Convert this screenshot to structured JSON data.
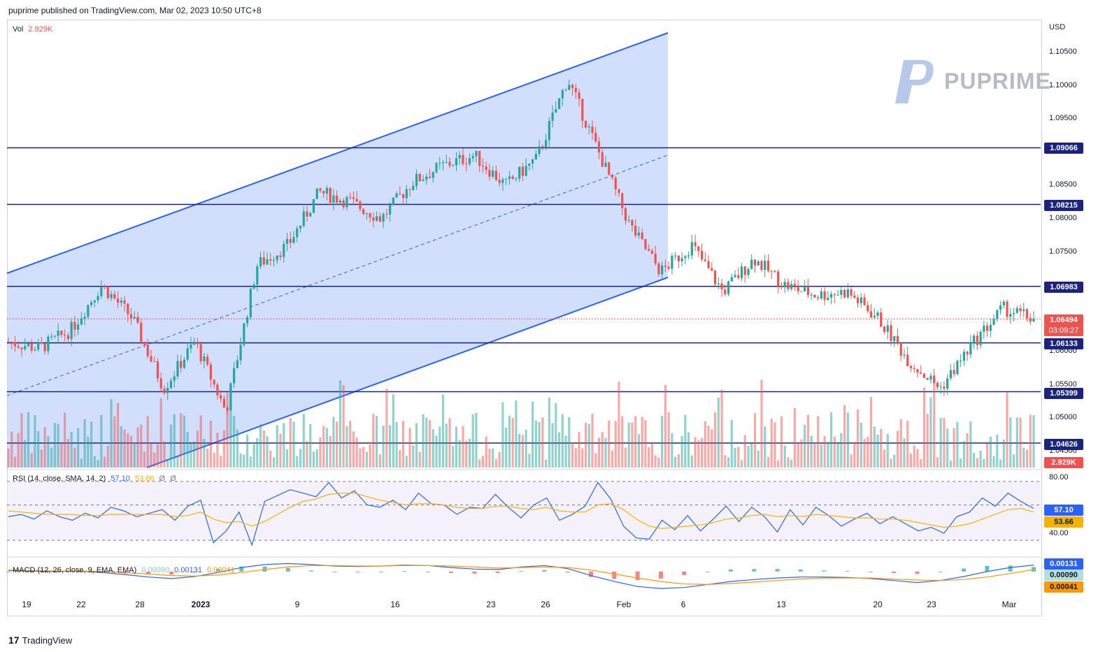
{
  "header": {
    "publisher": "puprime published on TradingView.com, Mar 02, 2023 10:50 UTC+8"
  },
  "footer": {
    "brand": "TradingView",
    "logo_glyph": "17"
  },
  "watermark": {
    "text": "PUPRIME"
  },
  "colors": {
    "up": "#26a69a",
    "down": "#ef5350",
    "channel_fill": "#c9d8fb",
    "channel_line": "#2962ff",
    "level_line": "#1a237e",
    "rsi_line": "#2962ff",
    "rsi_ma": "#f5b301",
    "macd_line": "#2962ff",
    "signal_line": "#ff9800"
  },
  "volume": {
    "label": "Vol",
    "value": "2.929K"
  },
  "axis": {
    "currency": "USD",
    "price_ticks": [
      "1.10500",
      "1.10000",
      "1.09500",
      "1.08500",
      "1.08000",
      "1.07500",
      "1.06000",
      "1.05500",
      "1.05000",
      "1.04500"
    ],
    "x_labels": [
      "19",
      "22",
      "28",
      "2023",
      "9",
      "16",
      "23",
      "26",
      "Feb",
      "6",
      "13",
      "20",
      "23",
      "Mar"
    ]
  },
  "price_labels": {
    "l1": "1.09066",
    "l2": "1.08215",
    "l3": "1.06983",
    "last": "1.06494",
    "countdown": "03:09:27",
    "l4": "1.06133",
    "l5": "1.05399",
    "l6": "1.04626",
    "vol": "2.929K"
  },
  "rsi": {
    "label": "RSI (14, close, SMA, 14, 2)",
    "value": "57.10",
    "ma": "53.66",
    "extra1": "Ø",
    "extra2": "Ø",
    "ticks": [
      "80.00",
      "40.00"
    ],
    "label_value": "57.10",
    "label_ma": "53.66"
  },
  "macd": {
    "label": "MACD (12, 26, close, 9, EMA, EMA)",
    "hist": "0.00090",
    "macd": "0.00131",
    "signal": "0.00041",
    "label_macd": "0.00131",
    "label_hist": "0.00090",
    "label_signal": "0.00041"
  },
  "chart_data": {
    "type": "candlestick",
    "symbol_currency": "USD",
    "horizontal_levels": [
      1.09066,
      1.08215,
      1.06983,
      1.06133,
      1.05399,
      1.04626
    ],
    "last_price": 1.06494,
    "ylim": [
      1.044,
      1.107
    ],
    "price_points": [
      {
        "x": "Dec 19",
        "y": 1.0615
      },
      {
        "x": "Dec 22",
        "y": 1.0605
      },
      {
        "x": "Dec 28",
        "y": 1.0632
      },
      {
        "x": "Dec 30",
        "y": 1.07
      },
      {
        "x": "Jan 2",
        "y": 1.065
      },
      {
        "x": "Jan 3",
        "y": 1.0545
      },
      {
        "x": "Jan 5",
        "y": 1.0615
      },
      {
        "x": "Jan 6",
        "y": 1.051
      },
      {
        "x": "Jan 9",
        "y": 1.073
      },
      {
        "x": "Jan 12",
        "y": 1.076
      },
      {
        "x": "Jan 13",
        "y": 1.084
      },
      {
        "x": "Jan 16",
        "y": 1.0825
      },
      {
        "x": "Jan 19",
        "y": 1.08
      },
      {
        "x": "Jan 20",
        "y": 1.0855
      },
      {
        "x": "Jan 23",
        "y": 1.088
      },
      {
        "x": "Jan 26",
        "y": 1.0895
      },
      {
        "x": "Jan 30",
        "y": 1.085
      },
      {
        "x": "Feb 1",
        "y": 1.089
      },
      {
        "x": "Feb 2",
        "y": 1.101
      },
      {
        "x": "Feb 3",
        "y": 1.09
      },
      {
        "x": "Feb 6",
        "y": 1.079
      },
      {
        "x": "Feb 8",
        "y": 1.072
      },
      {
        "x": "Feb 10",
        "y": 1.076
      },
      {
        "x": "Feb 13",
        "y": 1.069
      },
      {
        "x": "Feb 14",
        "y": 1.074
      },
      {
        "x": "Feb 15",
        "y": 1.07
      },
      {
        "x": "Feb 17",
        "y": 1.0685
      },
      {
        "x": "Feb 20",
        "y": 1.069
      },
      {
        "x": "Feb 22",
        "y": 1.065
      },
      {
        "x": "Feb 24",
        "y": 1.0585
      },
      {
        "x": "Feb 27",
        "y": 1.0545
      },
      {
        "x": "Feb 28",
        "y": 1.061
      },
      {
        "x": "Mar 1",
        "y": 1.0665
      },
      {
        "x": "Mar 2",
        "y": 1.0649
      }
    ],
    "rsi_ylim": [
      20,
      90
    ],
    "rsi_points": [
      50,
      52,
      48,
      55,
      50,
      47,
      53,
      49,
      58,
      55,
      50,
      53,
      56,
      47,
      59,
      64,
      28,
      38,
      54,
      26,
      63,
      68,
      73,
      70,
      67,
      79,
      66,
      72,
      60,
      58,
      64,
      56,
      70,
      61,
      60,
      52,
      58,
      57,
      69,
      58,
      49,
      60,
      66,
      47,
      52,
      59,
      79,
      65,
      42,
      32,
      31,
      47,
      39,
      51,
      38,
      48,
      59,
      46,
      58,
      50,
      37,
      56,
      43,
      58,
      51,
      42,
      48,
      53,
      44,
      50,
      44,
      38,
      41,
      36,
      50,
      54,
      66,
      59,
      70,
      63,
      57
    ],
    "rsi_ma_points": [
      55,
      54,
      53,
      52,
      52,
      52,
      51,
      51,
      52,
      52,
      52,
      52,
      52,
      50,
      51,
      54,
      48,
      45,
      46,
      42,
      46,
      52,
      58,
      63,
      65,
      69,
      70,
      70,
      67,
      64,
      62,
      60,
      61,
      61,
      60,
      58,
      57,
      57,
      59,
      59,
      57,
      56,
      58,
      55,
      54,
      54,
      60,
      61,
      56,
      48,
      42,
      40,
      41,
      42,
      43,
      45,
      48,
      49,
      51,
      52,
      50,
      51,
      50,
      52,
      51,
      50,
      49,
      49,
      48,
      48,
      47,
      45,
      43,
      41,
      42,
      44,
      48,
      52,
      56,
      57,
      54
    ],
    "macd_points": [
      0.0002,
      0.0001,
      0.0,
      0.0001,
      -0.0002,
      -0.0006,
      -0.0011,
      -0.0014,
      -0.001,
      -0.0002,
      0.0008,
      0.0014,
      0.0016,
      0.0014,
      0.0011,
      0.001,
      0.0011,
      0.0013,
      0.0012,
      0.0008,
      0.0005,
      0.0004,
      0.0009,
      0.0012,
      0.0006,
      -0.0008,
      -0.002,
      -0.003,
      -0.0034,
      -0.0032,
      -0.0026,
      -0.002,
      -0.0016,
      -0.0013,
      -0.0011,
      -0.0011,
      -0.0012,
      -0.0014,
      -0.0018,
      -0.0022,
      -0.0018,
      -0.001,
      0.0,
      0.0008,
      0.0013
    ],
    "signal_points": [
      0.0003,
      0.0002,
      0.0001,
      0.0001,
      0.0,
      -0.0002,
      -0.0005,
      -0.0008,
      -0.0009,
      -0.0007,
      -0.0002,
      0.0004,
      0.0009,
      0.0012,
      0.0012,
      0.0011,
      0.0011,
      0.0012,
      0.0012,
      0.0011,
      0.0009,
      0.0007,
      0.0008,
      0.0009,
      0.0008,
      0.0003,
      -0.0005,
      -0.0013,
      -0.002,
      -0.0025,
      -0.0026,
      -0.0024,
      -0.0021,
      -0.0018,
      -0.0015,
      -0.0013,
      -0.0013,
      -0.0013,
      -0.0015,
      -0.0017,
      -0.0018,
      -0.0016,
      -0.0011,
      -0.0004,
      0.0004
    ],
    "macd_ylim": [
      -0.0045,
      0.0025
    ]
  }
}
